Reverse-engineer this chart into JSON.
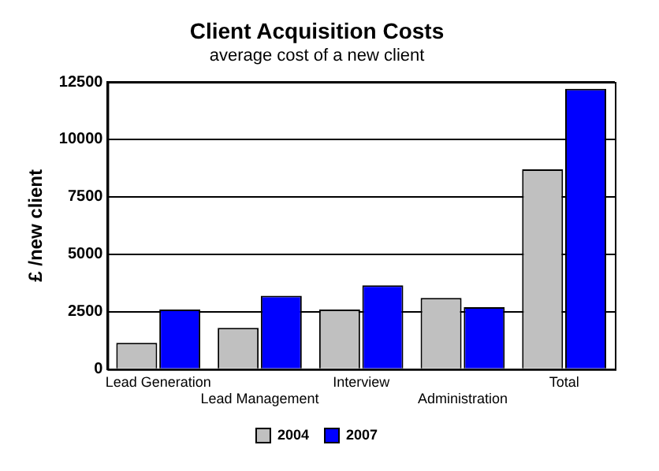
{
  "chart_data": {
    "type": "bar",
    "title": "Client Acquisition Costs",
    "subtitle": "average cost of a new client",
    "ylabel": "£ /new client",
    "categories": [
      "Lead Generation",
      "Lead Management",
      "Interview",
      "Administration",
      "Total"
    ],
    "series": [
      {
        "name": "2004",
        "color": "#c0c0c0",
        "values": [
          1150,
          1800,
          2600,
          3100,
          8700
        ]
      },
      {
        "name": "2007",
        "color": "#0000ff",
        "values": [
          2600,
          3200,
          3650,
          2700,
          12200
        ]
      }
    ],
    "ylim": [
      0,
      12500
    ],
    "yticks": [
      0,
      2500,
      5000,
      7500,
      10000,
      12500
    ],
    "grid": "y",
    "legend": "bottom"
  }
}
